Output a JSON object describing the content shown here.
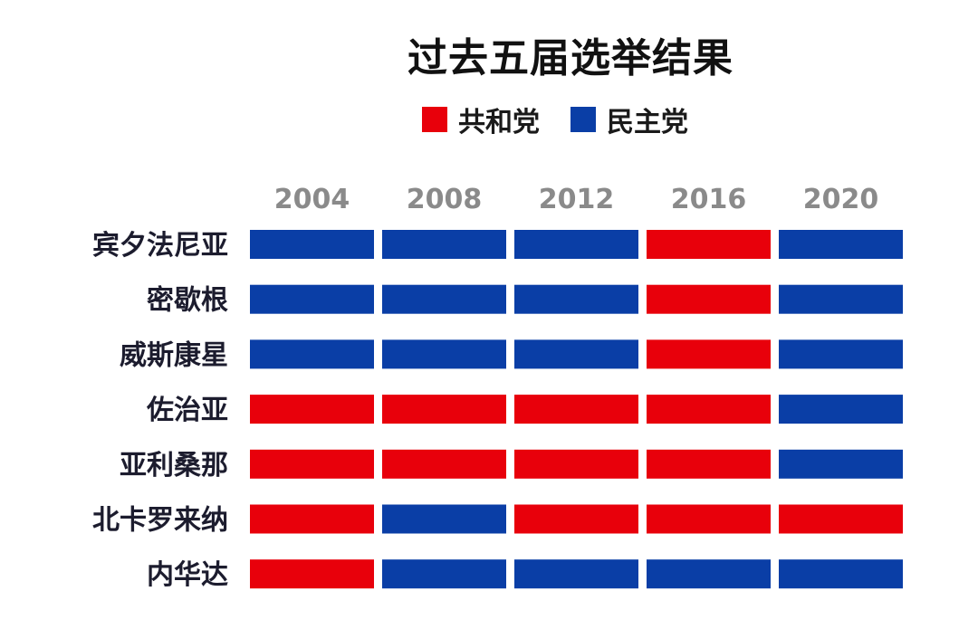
{
  "chart_data": {
    "type": "heatmap",
    "title": "过去五届选举结果",
    "legend": [
      {
        "key": "R",
        "label": "共和党",
        "color": "#e8000b"
      },
      {
        "key": "D",
        "label": "民主党",
        "color": "#0a3ea6"
      }
    ],
    "legend_placement": "top-center",
    "columns": [
      "2004",
      "2008",
      "2012",
      "2016",
      "2020"
    ],
    "rows": [
      "宾夕法尼亚",
      "密歇根",
      "威斯康星",
      "佐治亚",
      "亚利桑那",
      "北卡罗来纳",
      "内华达"
    ],
    "values": [
      [
        "D",
        "D",
        "D",
        "R",
        "D"
      ],
      [
        "D",
        "D",
        "D",
        "R",
        "D"
      ],
      [
        "D",
        "D",
        "D",
        "R",
        "D"
      ],
      [
        "R",
        "R",
        "R",
        "R",
        "D"
      ],
      [
        "R",
        "R",
        "R",
        "R",
        "D"
      ],
      [
        "R",
        "D",
        "R",
        "R",
        "R"
      ],
      [
        "R",
        "D",
        "D",
        "D",
        "D"
      ]
    ],
    "grid": false
  }
}
